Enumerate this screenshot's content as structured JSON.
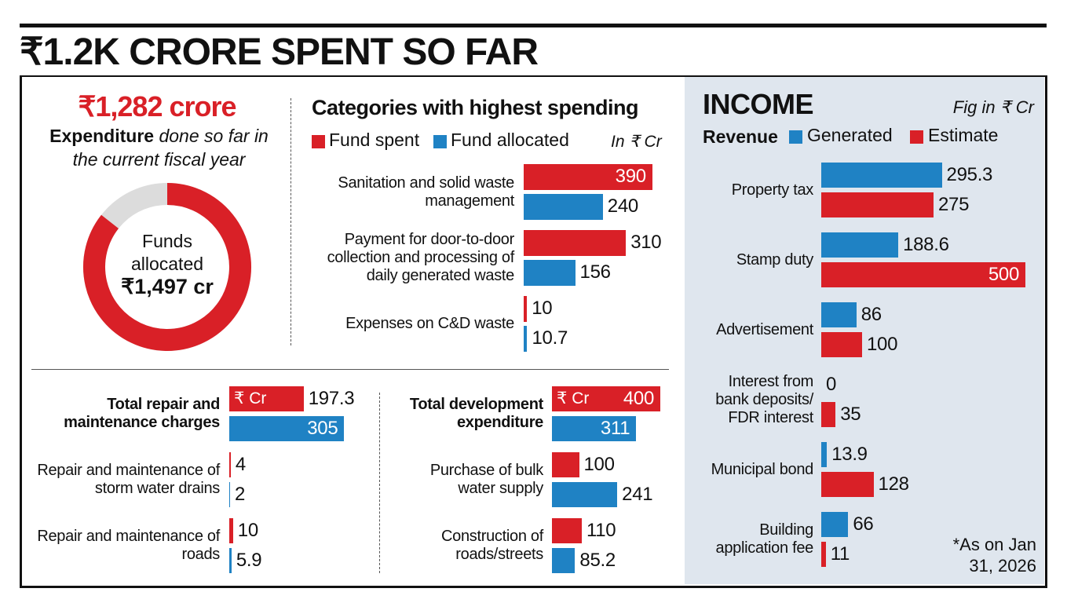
{
  "title": "₹1.2K CRORE SPENT SO FAR",
  "chart_data": [
    {
      "type": "donut",
      "value": 1282,
      "value_label": "₹1,282 crore",
      "subtitle_bold": "Expenditure",
      "subtitle": "done so far in the current fiscal year",
      "center_label": "Funds allocated",
      "total": 1497,
      "total_label": "₹1,497 cr",
      "color": "#d92027",
      "rest_color": "#dcdcdc"
    },
    {
      "type": "hbar",
      "title": "Categories with highest spending",
      "unit": "In ₹ Cr",
      "categories": [
        "Sanitation and solid waste management",
        "Payment for door-to-door collection and processing of daily generated waste",
        "Expenses on C&D waste"
      ],
      "series": [
        {
          "name": "Fund spent",
          "color": "#d92027",
          "values": [
            390,
            310,
            10
          ]
        },
        {
          "name": "Fund allocated",
          "color": "#1f82c4",
          "values": [
            240,
            156,
            10.7
          ]
        }
      ]
    },
    {
      "type": "hbar",
      "unit": "₹ Cr",
      "categories": [
        "Total repair and maintenance charges",
        "Repair and maintenance of storm water drains",
        "Repair and maintenance of roads"
      ],
      "series": [
        {
          "color": "#d92027",
          "values": [
            197.3,
            4,
            10
          ]
        },
        {
          "color": "#1f82c4",
          "values": [
            305,
            2,
            5.9
          ]
        }
      ]
    },
    {
      "type": "hbar",
      "unit": "₹ Cr",
      "categories": [
        "Total development expenditure",
        "Purchase of bulk water supply",
        "Construction of roads/streets"
      ],
      "series": [
        {
          "color": "#d92027",
          "values": [
            400,
            100,
            110
          ]
        },
        {
          "color": "#1f82c4",
          "values": [
            311,
            241,
            85.2
          ]
        }
      ]
    },
    {
      "type": "hbar",
      "title": "INCOME",
      "unit": "Fig in ₹ Cr",
      "legend_title": "Revenue",
      "categories": [
        "Property tax",
        "Stamp duty",
        "Advertisement",
        "Interest from bank deposits/ FDR interest",
        "Municipal bond",
        "Building application fee"
      ],
      "series": [
        {
          "name": "Generated",
          "color": "#1f82c4",
          "values": [
            295.3,
            188.6,
            86,
            0,
            13.9,
            66
          ]
        },
        {
          "name": "Estimate",
          "color": "#d92027",
          "values": [
            275,
            500,
            100,
            35,
            128,
            11
          ]
        }
      ]
    }
  ],
  "note": "*As on Jan 31, 2026"
}
